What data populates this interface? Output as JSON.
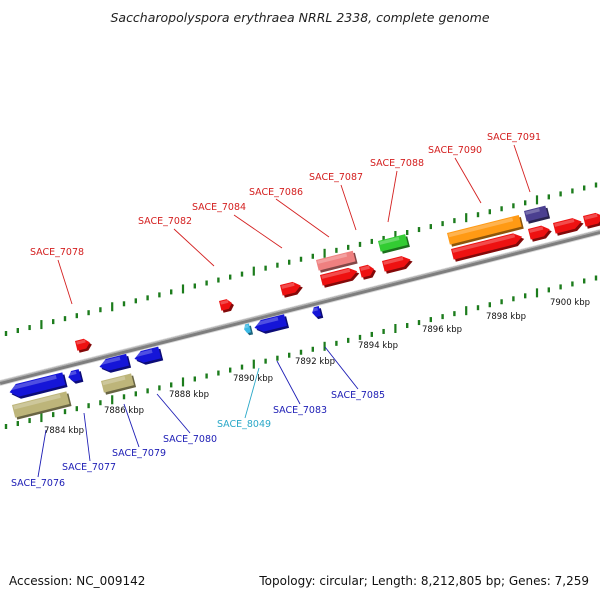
{
  "title": "Saccharopolyspora erythraea NRRL 2338, complete genome",
  "footer": {
    "accession": "Accession: NC_009142",
    "topology": "Topology: circular; Length: 8,212,805 bp; Genes: 7,259"
  },
  "colors": {
    "forward_label": "#d42020",
    "reverse_label": "#1d1db5",
    "rna_label": "#2aa8c8",
    "backbone": "#8a8a8a",
    "tick": "#1c7c1c"
  },
  "ruler_labels": [
    "7884 kbp",
    "7886 kbp",
    "7888 kbp",
    "7890 kbp",
    "7892 kbp",
    "7894 kbp",
    "7896 kbp",
    "7898 kbp",
    "7900 kbp"
  ],
  "forward_gene_labels": [
    "SACE_7078",
    "SACE_7082",
    "SACE_7084",
    "SACE_7086",
    "SACE_7087",
    "SACE_7088",
    "SACE_7090",
    "SACE_7091"
  ],
  "reverse_gene_labels": [
    "SACE_7076",
    "SACE_7077",
    "SACE_7079",
    "SACE_7080",
    "SACE_7083",
    "SACE_7085"
  ],
  "rna_gene_labels": [
    "SACE_8049"
  ]
}
